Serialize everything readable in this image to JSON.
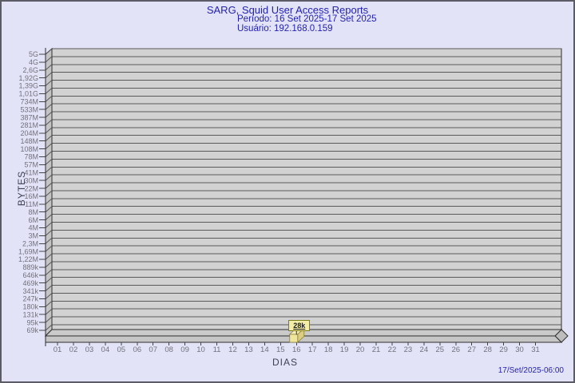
{
  "header": {
    "title": "SARG, Squid User Access Reports",
    "period": "Período: 16 Set 2025-17 Set 2025",
    "user": "Usuário: 192.168.0.159"
  },
  "footer": {
    "generated": "17/Set/2025-06:00"
  },
  "chart_data": {
    "type": "bar",
    "title": "SARG, Squid User Access Reports",
    "subtitle_period": "Período: 16 Set 2025-17 Set 2025",
    "subtitle_user": "Usuário: 192.168.0.159",
    "xlabel": "DIAS",
    "ylabel": "BYTES",
    "grid": true,
    "categories": [
      "01",
      "02",
      "03",
      "04",
      "05",
      "06",
      "07",
      "08",
      "09",
      "10",
      "11",
      "12",
      "13",
      "14",
      "15",
      "16",
      "17",
      "18",
      "19",
      "20",
      "21",
      "22",
      "23",
      "24",
      "25",
      "26",
      "27",
      "28",
      "29",
      "30",
      "31"
    ],
    "values": [
      0,
      0,
      0,
      0,
      0,
      0,
      0,
      0,
      0,
      0,
      0,
      0,
      0,
      0,
      0,
      28000,
      0,
      0,
      0,
      0,
      0,
      0,
      0,
      0,
      0,
      0,
      0,
      0,
      0,
      0,
      0
    ],
    "y_tick_labels": [
      "5G",
      "4G",
      "2,6G",
      "1,92G",
      "1,39G",
      "1,01G",
      "734M",
      "533M",
      "387M",
      "281M",
      "204M",
      "148M",
      "108M",
      "78M",
      "57M",
      "41M",
      "30M",
      "22M",
      "16M",
      "11M",
      "8M",
      "6M",
      "4M",
      "3M",
      "2,3M",
      "1,69M",
      "1,22M",
      "889k",
      "646k",
      "469k",
      "341k",
      "247k",
      "180k",
      "131k",
      "95k",
      "69k"
    ],
    "annotations": [
      {
        "category": "16",
        "text": "28k",
        "value_bytes": 28000
      }
    ]
  },
  "colors": {
    "background": "#e3e3f7",
    "frame_border": "#5c5c66",
    "title_text": "#2323ad",
    "plot_bg": "#d2d2d2",
    "wall": "#c4c4c4",
    "floor_top": "#cacaca",
    "floor_front": "#c6c6c6",
    "floor_side": "#bdbdbd",
    "grid_line": "#5a5a5a",
    "outline": "#2e2e2e",
    "tick_text": "#71717c",
    "bar_front": "#f0e59c",
    "bar_top": "#f6eeb6",
    "bar_side": "#dbce80",
    "bar_border": "#8a8140",
    "annotation_bg": "#f4eda7",
    "annotation_border": "#7c7c1f",
    "annotation_text": "#1b1b1b"
  }
}
